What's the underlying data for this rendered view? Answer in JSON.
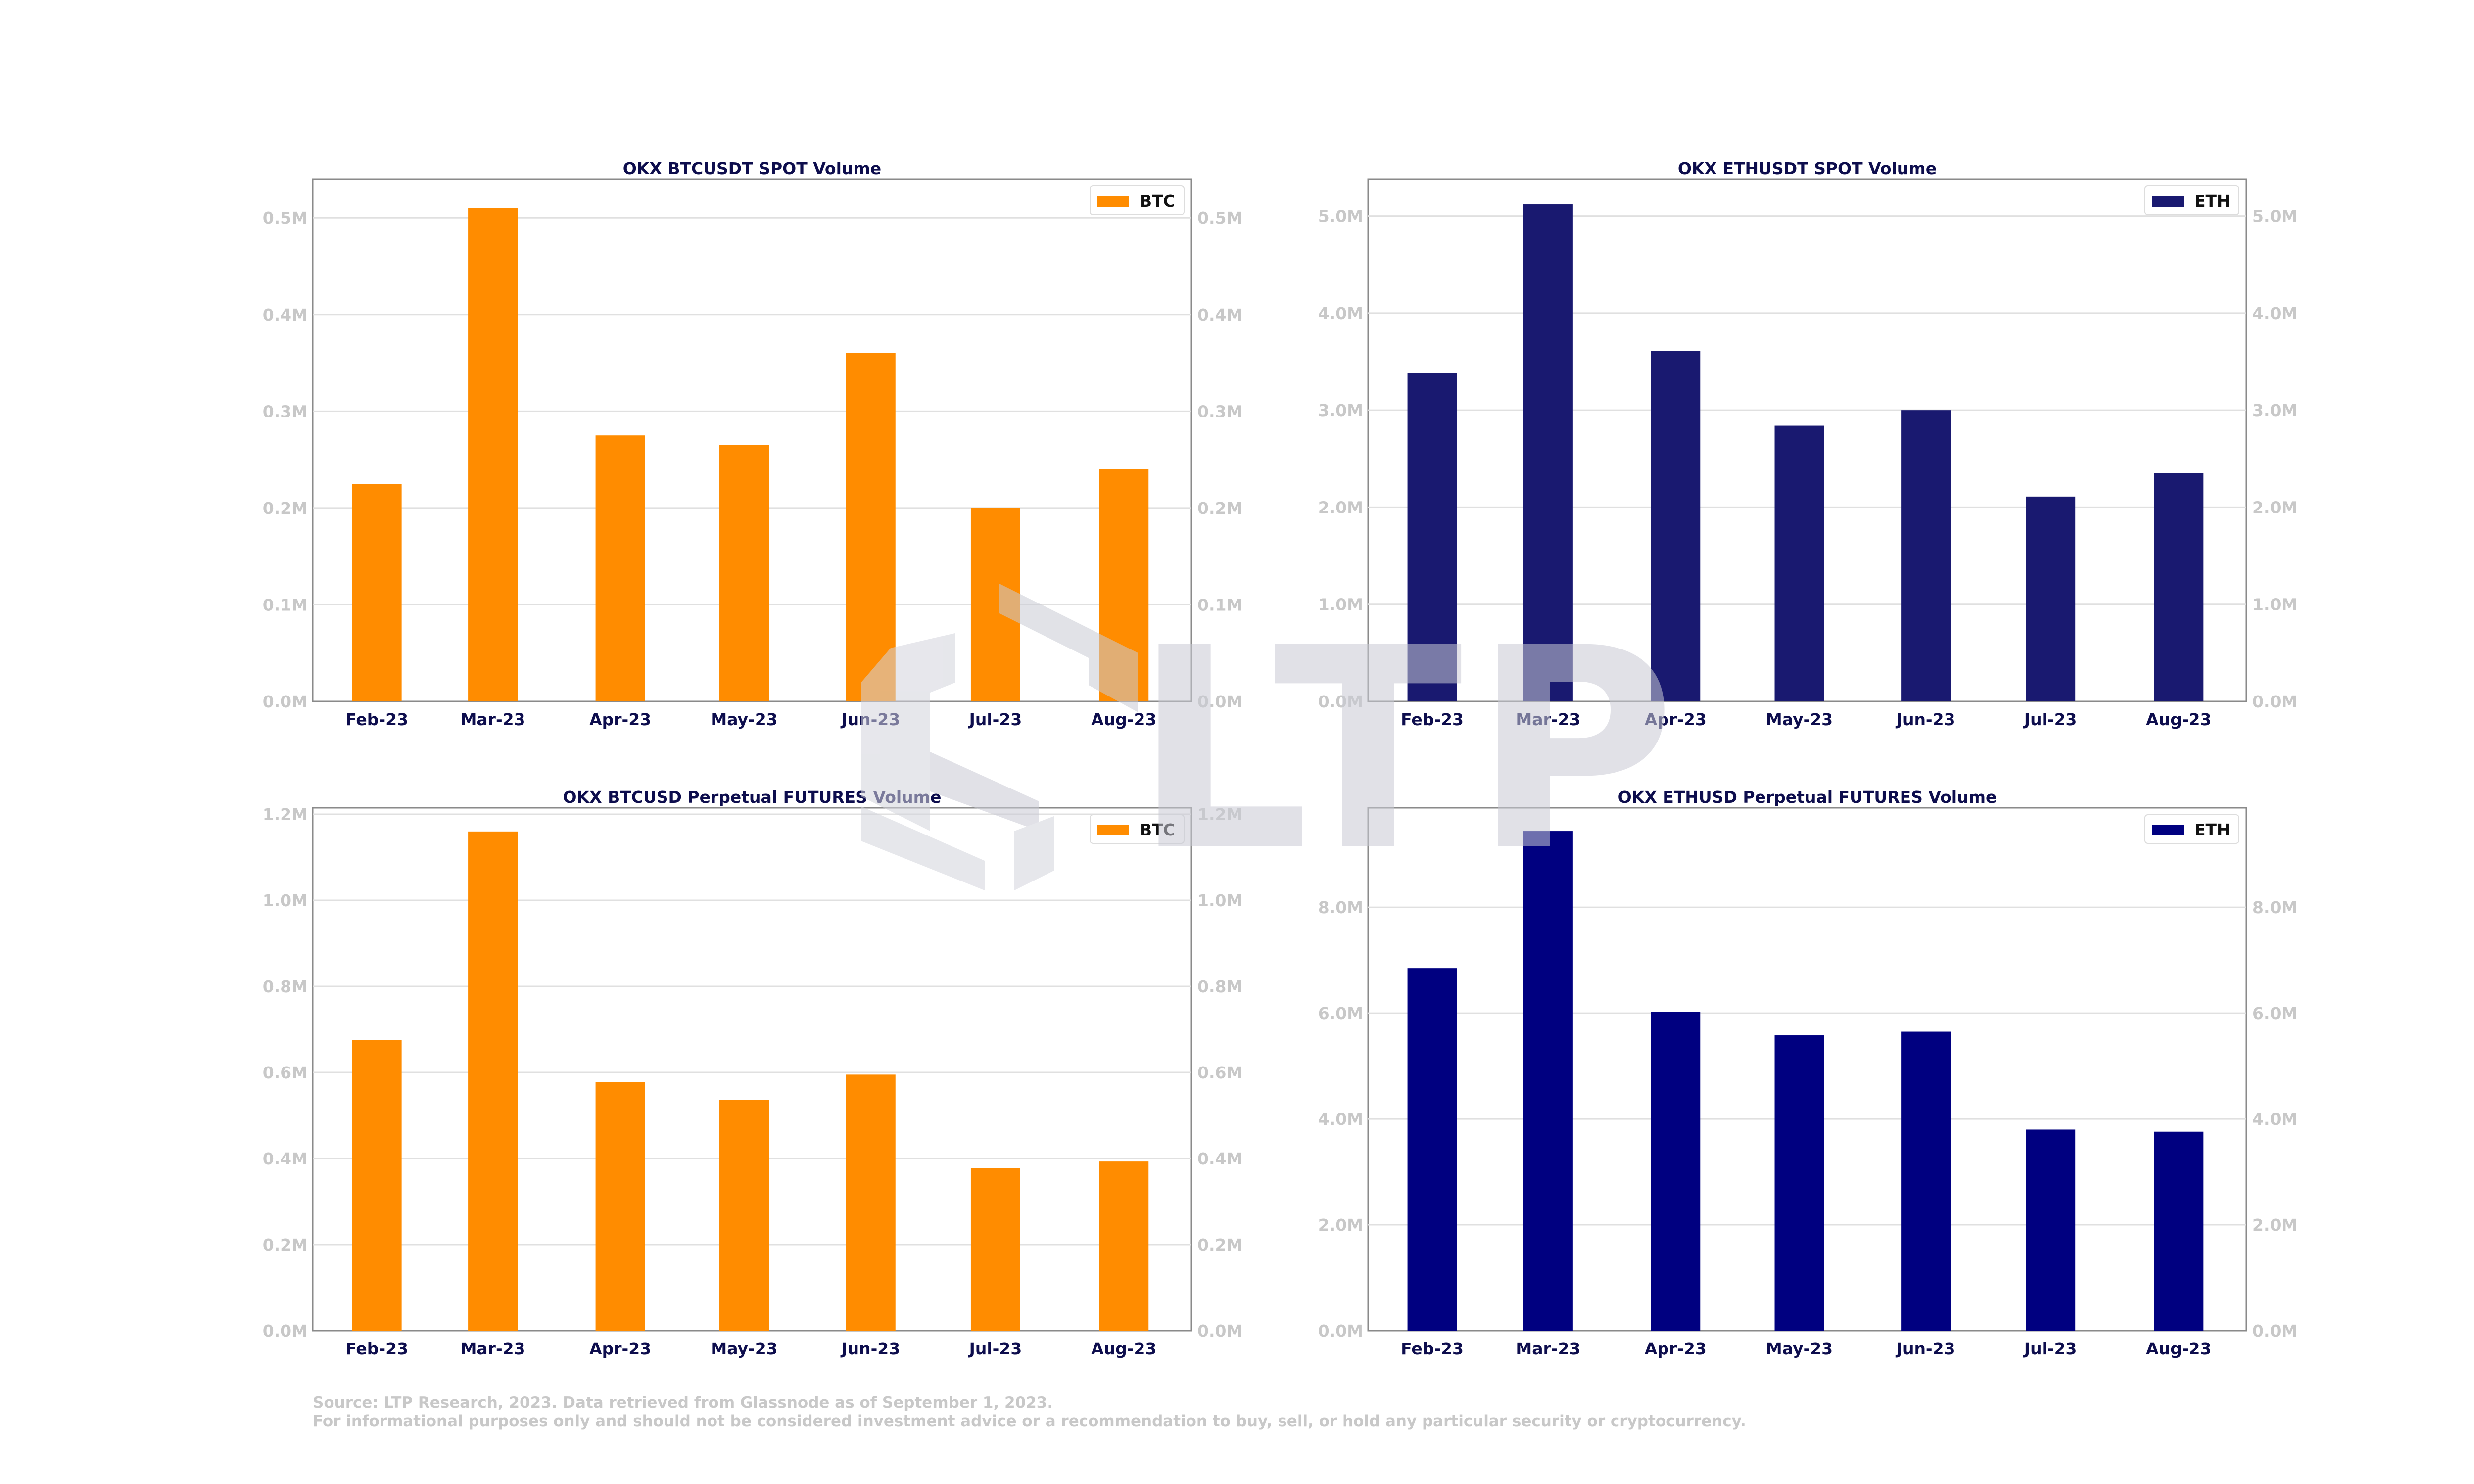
{
  "watermark": {
    "text": "LTP"
  },
  "footer": {
    "line1": "Source: LTP Research, 2023. Data retrieved from Glassnode as of September 1, 2023.",
    "line2": "For informational purposes only and should not be considered investment advice or a recommendation to buy, sell, or hold any particular security or cryptocurrency."
  },
  "colors": {
    "btc": "#ff8c00",
    "eth_spot": "#191970",
    "eth_futures": "#000080",
    "title": "#0d0d4d",
    "axis_tick": "#c8c8c8",
    "grid": "#e0e0e0"
  },
  "chart_data": [
    {
      "type": "bar",
      "title": "OKX BTCUSDT SPOT Volume",
      "categories": [
        "Feb-23",
        "Mar-23",
        "Apr-23",
        "May-23",
        "Jun-23",
        "Jul-23",
        "Aug-23"
      ],
      "series": [
        {
          "name": "BTC",
          "values": [
            225000,
            510000,
            275000,
            265000,
            360000,
            200000,
            240000
          ]
        }
      ],
      "ylim": [
        0,
        540000
      ],
      "yticks": [
        "0.0M",
        "0.1M",
        "0.2M",
        "0.3M",
        "0.4M",
        "0.5M"
      ],
      "ytick_values": [
        0,
        100000,
        200000,
        300000,
        400000,
        500000
      ],
      "grid": true,
      "legend": "top-right",
      "y_axis_both_sides": true
    },
    {
      "type": "bar",
      "title": "OKX ETHUSDT SPOT Volume",
      "categories": [
        "Feb-23",
        "Mar-23",
        "Apr-23",
        "May-23",
        "Jun-23",
        "Jul-23",
        "Aug-23"
      ],
      "series": [
        {
          "name": "ETH",
          "values": [
            3380000,
            5120000,
            3610000,
            2840000,
            3000000,
            2110000,
            2350000
          ]
        }
      ],
      "ylim": [
        0,
        5380000
      ],
      "yticks": [
        "0.0M",
        "1.0M",
        "2.0M",
        "3.0M",
        "4.0M",
        "5.0M"
      ],
      "ytick_values": [
        0,
        1000000,
        2000000,
        3000000,
        4000000,
        5000000
      ],
      "grid": true,
      "legend": "top-right",
      "y_axis_both_sides": true
    },
    {
      "type": "bar",
      "title": "OKX BTCUSD Perpetual FUTURES Volume",
      "categories": [
        "Feb-23",
        "Mar-23",
        "Apr-23",
        "May-23",
        "Jun-23",
        "Jul-23",
        "Aug-23"
      ],
      "series": [
        {
          "name": "BTC",
          "values": [
            675000,
            1160000,
            578000,
            536000,
            595000,
            378000,
            393000
          ]
        }
      ],
      "ylim": [
        0,
        1215000
      ],
      "yticks": [
        "0.0M",
        "0.2M",
        "0.4M",
        "0.6M",
        "0.8M",
        "1.0M",
        "1.2M"
      ],
      "ytick_values": [
        0,
        200000,
        400000,
        600000,
        800000,
        1000000,
        1200000
      ],
      "grid": true,
      "legend": "top-right",
      "y_axis_both_sides": true
    },
    {
      "type": "bar",
      "title": "OKX ETHUSD Perpetual FUTURES Volume",
      "categories": [
        "Feb-23",
        "Mar-23",
        "Apr-23",
        "May-23",
        "Jun-23",
        "Jul-23",
        "Aug-23"
      ],
      "series": [
        {
          "name": "ETH",
          "values": [
            6850000,
            9440000,
            6020000,
            5580000,
            5650000,
            3800000,
            3760000
          ]
        }
      ],
      "ylim": [
        0,
        9880000
      ],
      "yticks": [
        "0.0M",
        "2.0M",
        "4.0M",
        "6.0M",
        "8.0M"
      ],
      "ytick_values": [
        0,
        2000000,
        4000000,
        6000000,
        8000000
      ],
      "grid": true,
      "legend": "top-right",
      "y_axis_both_sides": true
    }
  ]
}
